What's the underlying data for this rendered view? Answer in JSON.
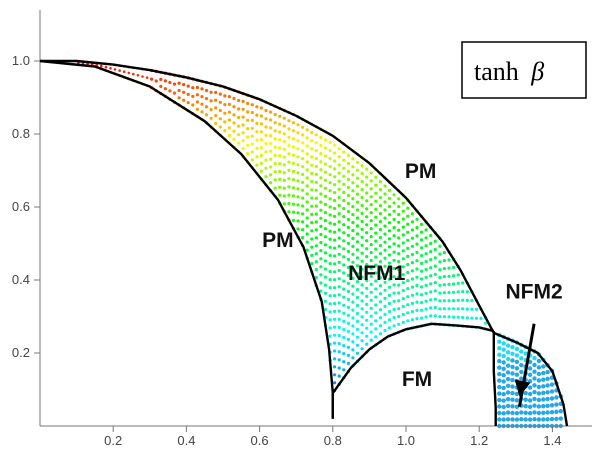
{
  "chart_data": {
    "type": "scatter",
    "title": "",
    "xlabel": "",
    "ylabel": "",
    "xlim": [
      0,
      1.48
    ],
    "ylim": [
      0,
      1.1
    ],
    "x_ticks": [
      "0.2",
      "0.4",
      "0.6",
      "0.8",
      "1.0",
      "1.2",
      "1.4"
    ],
    "y_ticks": [
      "0.2",
      "0.4",
      "0.6",
      "0.8",
      "1.0"
    ],
    "x_tick_values": [
      0.2,
      0.4,
      0.6,
      0.8,
      1.0,
      1.2,
      1.4
    ],
    "y_tick_values": [
      0.2,
      0.4,
      0.6,
      0.8,
      1.0
    ],
    "legend_box": {
      "text": "tanh",
      "symbol": "β",
      "placement": "top-right"
    },
    "color_scale": "tanh β: red (≈1.0) → yellow → green → cyan → blue (≈0)",
    "regions": [
      {
        "label": "PM",
        "x": 0.65,
        "y": 0.49
      },
      {
        "label": "PM",
        "x": 1.04,
        "y": 0.68
      },
      {
        "label": "NFM1",
        "x": 0.92,
        "y": 0.4
      },
      {
        "label": "NFM2",
        "x": 1.35,
        "y": 0.35
      },
      {
        "label": "FM",
        "x": 1.03,
        "y": 0.11
      }
    ],
    "boundaries": [
      {
        "name": "outer",
        "points": [
          [
            0.0,
            1.0
          ],
          [
            0.1,
            1.0
          ],
          [
            0.2,
            0.99
          ],
          [
            0.3,
            0.975
          ],
          [
            0.4,
            0.955
          ],
          [
            0.5,
            0.93
          ],
          [
            0.6,
            0.895
          ],
          [
            0.7,
            0.85
          ],
          [
            0.8,
            0.795
          ],
          [
            0.9,
            0.72
          ],
          [
            1.0,
            0.625
          ],
          [
            1.1,
            0.505
          ],
          [
            1.15,
            0.425
          ],
          [
            1.2,
            0.33
          ],
          [
            1.24,
            0.255
          ],
          [
            1.3,
            0.23
          ],
          [
            1.36,
            0.2
          ],
          [
            1.4,
            0.15
          ],
          [
            1.43,
            0.06
          ],
          [
            1.44,
            0.0
          ]
        ]
      },
      {
        "name": "inner",
        "points": [
          [
            0.0,
            1.0
          ],
          [
            0.15,
            0.985
          ],
          [
            0.3,
            0.93
          ],
          [
            0.45,
            0.835
          ],
          [
            0.55,
            0.745
          ],
          [
            0.65,
            0.62
          ],
          [
            0.72,
            0.49
          ],
          [
            0.77,
            0.34
          ],
          [
            0.79,
            0.21
          ],
          [
            0.8,
            0.09
          ],
          [
            0.8,
            0.02
          ]
        ]
      },
      {
        "name": "fm-dome",
        "points": [
          [
            0.8,
            0.02
          ],
          [
            0.8,
            0.09
          ],
          [
            0.85,
            0.16
          ],
          [
            0.9,
            0.21
          ],
          [
            0.95,
            0.245
          ],
          [
            1.0,
            0.265
          ],
          [
            1.07,
            0.28
          ],
          [
            1.14,
            0.275
          ],
          [
            1.2,
            0.27
          ],
          [
            1.24,
            0.26
          ]
        ]
      },
      {
        "name": "nfm2-left",
        "points": [
          [
            1.24,
            0.26
          ],
          [
            1.24,
            0.15
          ],
          [
            1.245,
            0.05
          ],
          [
            1.245,
            0.0
          ]
        ]
      }
    ],
    "arrow": {
      "from": [
        1.35,
        0.28
      ],
      "to": [
        1.31,
        0.08
      ]
    },
    "grid": false
  }
}
